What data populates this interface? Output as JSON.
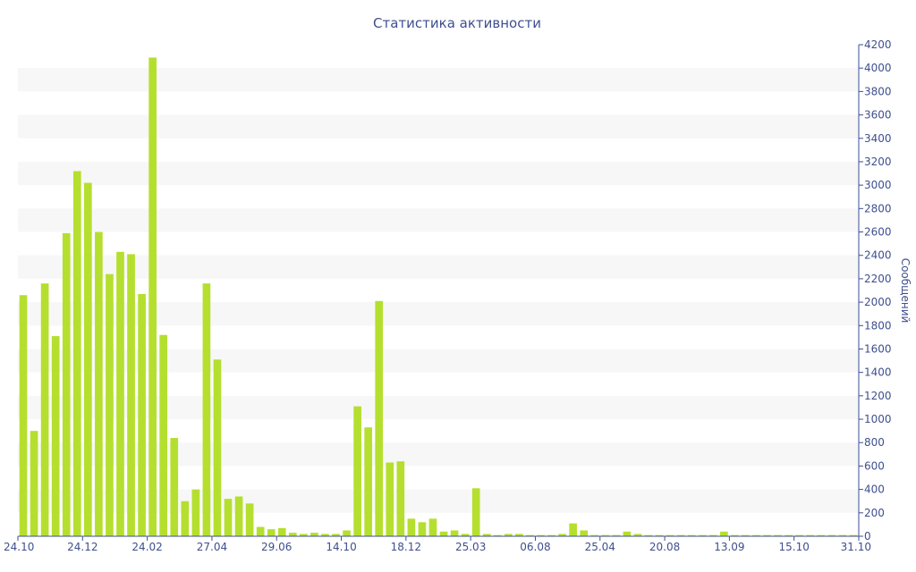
{
  "chart_data": {
    "type": "bar",
    "title": "Статистика активности",
    "xlabel": "",
    "ylabel": "Сообщений",
    "ylim": [
      0,
      4200
    ],
    "y_ticks": [
      0,
      200,
      400,
      600,
      800,
      1000,
      1200,
      1400,
      1600,
      1800,
      2000,
      2200,
      2400,
      2600,
      2800,
      3000,
      3200,
      3400,
      3600,
      3800,
      4000,
      4200
    ],
    "x_tick_labels": [
      "24.10",
      "24.12",
      "24.02",
      "27.04",
      "29.06",
      "14.10",
      "18.12",
      "25.03",
      "06.08",
      "25.04",
      "20.08",
      "13.09",
      "15.10",
      "31.10"
    ],
    "grid": "horizontal bands",
    "y_axis_side": "right",
    "colors": {
      "bar": "#b5df2f",
      "text": "#3e4f8f",
      "band": "#f7f7f7",
      "axis": "#3e4f8f"
    },
    "values": [
      2060,
      900,
      2160,
      1710,
      2590,
      3120,
      3020,
      2600,
      2240,
      2430,
      2410,
      2070,
      4090,
      1720,
      840,
      300,
      400,
      2160,
      1510,
      320,
      340,
      280,
      80,
      60,
      70,
      30,
      20,
      30,
      20,
      20,
      50,
      1110,
      930,
      2010,
      630,
      640,
      150,
      120,
      150,
      40,
      50,
      20,
      410,
      20,
      10,
      20,
      20,
      10,
      10,
      10,
      20,
      110,
      50,
      10,
      10,
      10,
      40,
      20,
      10,
      10,
      10,
      10,
      10,
      10,
      10,
      40,
      10,
      10,
      10,
      10,
      10,
      10,
      10,
      10,
      10,
      10,
      10,
      10
    ]
  }
}
